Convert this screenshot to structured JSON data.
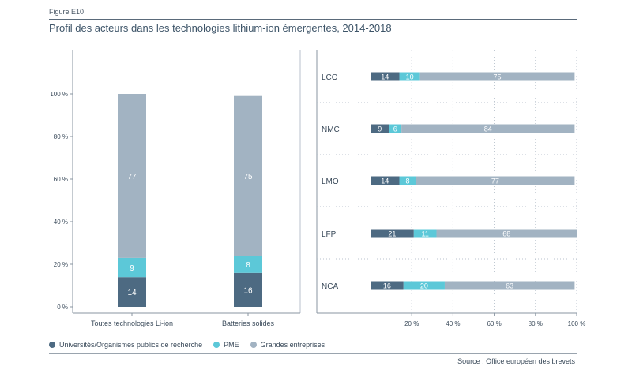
{
  "figure_label": "Figure E10",
  "title": "Profil des acteurs dans les technologies lithium-ion émergentes, 2014-2018",
  "colors": {
    "universites": "#4d6a82",
    "pme": "#5cc8d8",
    "grandes": "#a2b3c2",
    "grid": "#b8c2cc"
  },
  "legend": [
    {
      "key": "universites",
      "label": "Universités/Organismes publics de recherche"
    },
    {
      "key": "pme",
      "label": "PME"
    },
    {
      "key": "grandes",
      "label": "Grandes entreprises"
    }
  ],
  "source": "Source : Office européen des brevets",
  "chart_data": [
    {
      "type": "bar",
      "stacked": true,
      "orientation": "vertical",
      "categories": [
        "Toutes technologies Li-ion",
        "Batteries solides"
      ],
      "series": [
        {
          "name": "Universités/Organismes publics de recherche",
          "key": "universites",
          "values": [
            14,
            16
          ]
        },
        {
          "name": "PME",
          "key": "pme",
          "values": [
            9,
            8
          ]
        },
        {
          "name": "Grandes entreprises",
          "key": "grandes",
          "values": [
            77,
            75
          ]
        }
      ],
      "ylim": [
        0,
        100
      ],
      "yticks": [
        0,
        20,
        40,
        60,
        80,
        100
      ],
      "ytick_labels": [
        "0 %",
        "20 %",
        "40 %",
        "60 %",
        "80 %",
        "100 %"
      ]
    },
    {
      "type": "bar",
      "stacked": true,
      "orientation": "horizontal",
      "categories": [
        "LCO",
        "NMC",
        "LMO",
        "LFP",
        "NCA"
      ],
      "series": [
        {
          "name": "Universités/Organismes publics de recherche",
          "key": "universites",
          "values": [
            14,
            9,
            14,
            21,
            16
          ]
        },
        {
          "name": "PME",
          "key": "pme",
          "values": [
            10,
            6,
            8,
            11,
            20
          ]
        },
        {
          "name": "Grandes entreprises",
          "key": "grandes",
          "values": [
            75,
            84,
            77,
            68,
            63
          ]
        }
      ],
      "xlim": [
        0,
        100
      ],
      "xticks": [
        20,
        40,
        60,
        80,
        100
      ],
      "xtick_labels": [
        "20 %",
        "40 %",
        "60 %",
        "80 %",
        "100 %"
      ]
    }
  ]
}
